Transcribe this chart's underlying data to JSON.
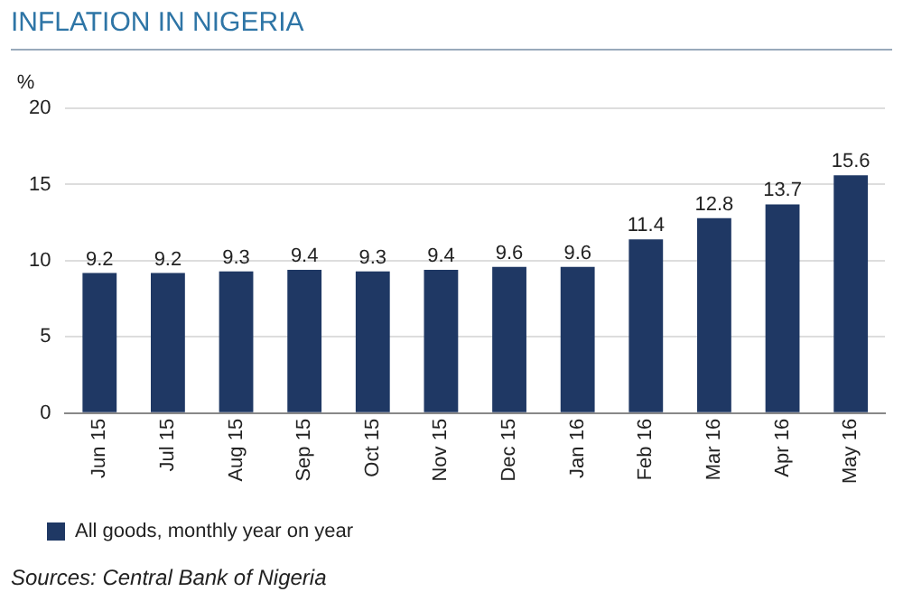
{
  "chart_data": {
    "type": "bar",
    "title": "INFLATION IN NIGERIA",
    "ylabel": "%",
    "categories": [
      "Jun 15",
      "Jul 15",
      "Aug 15",
      "Sep 15",
      "Oct 15",
      "Nov 15",
      "Dec 15",
      "Jan 16",
      "Feb 16",
      "Mar 16",
      "Apr 16",
      "May 16"
    ],
    "series": [
      {
        "name": "All goods, monthly year on year",
        "color": "#1f3864",
        "values": [
          9.2,
          9.2,
          9.3,
          9.4,
          9.3,
          9.4,
          9.6,
          9.6,
          11.4,
          12.8,
          13.7,
          15.6
        ]
      }
    ],
    "ylim": [
      0,
      20
    ],
    "yticks": [
      0,
      5,
      10,
      15,
      20
    ],
    "grid": "y",
    "legend": "bottom left",
    "data_labels": true,
    "annotations": [
      "Sources: Central Bank of Nigeria"
    ]
  }
}
